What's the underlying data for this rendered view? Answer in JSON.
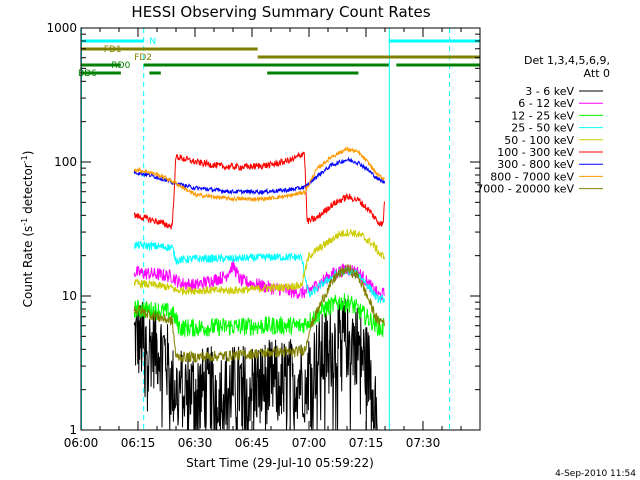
{
  "chart_data": {
    "type": "line",
    "title": "HESSI Observing Summary Count Rates",
    "xlabel": "Start Time (29-Jul-10 05:59:22)",
    "ylabel_parts": [
      "Count Rate (s",
      "-1",
      " detector",
      "-1",
      ")"
    ],
    "y_scale": "log",
    "ylim": [
      1,
      1000
    ],
    "xlim": [
      0,
      105
    ],
    "x_unit": "minutes after 06:00",
    "grid": false,
    "y_ticks": [
      {
        "v": 1,
        "label": "1"
      },
      {
        "v": 10,
        "label": "10"
      },
      {
        "v": 100,
        "label": "100"
      },
      {
        "v": 1000,
        "label": "1000"
      }
    ],
    "x_ticks": [
      {
        "v": 0,
        "label": "06:00"
      },
      {
        "v": 15,
        "label": "06:15"
      },
      {
        "v": 30,
        "label": "06:30"
      },
      {
        "v": 45,
        "label": "06:45"
      },
      {
        "v": 60,
        "label": "07:00"
      },
      {
        "v": 75,
        "label": "07:15"
      },
      {
        "v": 90,
        "label": "07:30"
      }
    ],
    "legend_title_lines": [
      "Det 1,3,4,5,6,9,",
      "Att 0"
    ],
    "legend_position": "right",
    "series": [
      {
        "name": "3 - 6 keV",
        "color": "#000000",
        "noise": 0.32,
        "points": [
          [
            14,
            5
          ],
          [
            16,
            4.5
          ],
          [
            19,
            4.2
          ],
          [
            22,
            3.9
          ],
          [
            24,
            2.1
          ],
          [
            30,
            2.0
          ],
          [
            40,
            2.1
          ],
          [
            50,
            2.3
          ],
          [
            56,
            2.4
          ],
          [
            59,
            2.5
          ],
          [
            61,
            3.1
          ],
          [
            65,
            4.0
          ],
          [
            69,
            4.8
          ],
          [
            72,
            4.9
          ],
          [
            75,
            3.2
          ],
          [
            76.5,
            2.5
          ],
          [
            78,
            1.5
          ]
        ]
      },
      {
        "name": "6 - 12 keV",
        "color": "#ff00ff",
        "noise": 0.05,
        "points": [
          [
            14,
            15
          ],
          [
            20,
            14.5
          ],
          [
            24,
            14
          ],
          [
            26,
            12.5
          ],
          [
            30,
            12
          ],
          [
            38,
            14
          ],
          [
            40,
            17
          ],
          [
            42,
            13
          ],
          [
            50,
            11.5
          ],
          [
            58,
            10.5
          ],
          [
            59.5,
            10.8
          ],
          [
            62,
            12
          ],
          [
            66,
            14.5
          ],
          [
            70,
            16
          ],
          [
            73,
            15
          ],
          [
            76,
            12
          ],
          [
            78.5,
            10
          ],
          [
            80,
            10.5
          ]
        ]
      },
      {
        "name": "12 - 25 keV",
        "color": "#00ff00",
        "noise": 0.07,
        "points": [
          [
            14,
            8
          ],
          [
            20,
            7.8
          ],
          [
            24,
            7.5
          ],
          [
            26,
            5.8
          ],
          [
            30,
            5.8
          ],
          [
            40,
            5.9
          ],
          [
            50,
            6.0
          ],
          [
            58,
            6.0
          ],
          [
            60,
            6.5
          ],
          [
            64,
            8
          ],
          [
            68,
            9
          ],
          [
            71,
            8.8
          ],
          [
            75,
            7
          ],
          [
            78,
            6
          ],
          [
            79.5,
            5.5
          ],
          [
            80,
            7.5
          ]
        ]
      },
      {
        "name": "25 - 50 keV",
        "color": "#00ffff",
        "noise": 0.03,
        "points": [
          [
            14,
            24
          ],
          [
            20,
            23.5
          ],
          [
            24,
            23
          ],
          [
            25,
            18.5
          ],
          [
            30,
            19
          ],
          [
            40,
            19
          ],
          [
            50,
            19.5
          ],
          [
            58,
            19.5
          ],
          [
            60,
            10
          ],
          [
            63,
            12
          ],
          [
            67,
            14.5
          ],
          [
            70,
            15.5
          ],
          [
            73,
            14.5
          ],
          [
            76,
            11.5
          ],
          [
            78,
            9.5
          ],
          [
            80,
            9.5
          ]
        ]
      },
      {
        "name": "50 - 100 keV",
        "color": "#cccc00",
        "noise": 0.03,
        "points": [
          [
            14,
            12.5
          ],
          [
            20,
            12
          ],
          [
            24,
            11.5
          ],
          [
            25,
            11
          ],
          [
            30,
            11
          ],
          [
            40,
            11
          ],
          [
            50,
            11.5
          ],
          [
            58,
            12
          ],
          [
            60,
            20
          ],
          [
            64,
            24
          ],
          [
            68,
            29
          ],
          [
            71,
            30
          ],
          [
            74,
            28
          ],
          [
            77,
            24
          ],
          [
            79,
            20
          ],
          [
            80,
            20
          ]
        ]
      },
      {
        "name": "100 - 300 keV",
        "color": "#ff0000",
        "noise": 0.025,
        "points": [
          [
            14,
            40
          ],
          [
            20,
            36
          ],
          [
            24,
            33
          ],
          [
            25,
            110
          ],
          [
            30,
            100
          ],
          [
            38,
            92
          ],
          [
            44,
            92
          ],
          [
            50,
            95
          ],
          [
            56,
            105
          ],
          [
            58.8,
            118
          ],
          [
            59.5,
            36
          ],
          [
            62,
            38
          ],
          [
            66,
            48
          ],
          [
            70,
            55
          ],
          [
            73,
            52
          ],
          [
            76,
            43
          ],
          [
            78,
            36
          ],
          [
            79.5,
            34
          ],
          [
            80,
            60
          ]
        ]
      },
      {
        "name": "300 - 800 keV",
        "color": "#0000ff",
        "noise": 0.015,
        "points": [
          [
            14,
            84
          ],
          [
            18,
            80
          ],
          [
            22,
            74
          ],
          [
            24,
            70
          ],
          [
            30,
            64
          ],
          [
            40,
            60
          ],
          [
            48,
            60
          ],
          [
            55,
            62
          ],
          [
            59,
            65
          ],
          [
            62,
            78
          ],
          [
            66,
            95
          ],
          [
            70,
            104
          ],
          [
            73,
            99
          ],
          [
            76,
            85
          ],
          [
            78,
            75
          ],
          [
            80,
            70
          ]
        ]
      },
      {
        "name": "800 - 7000 keV",
        "color": "#ff9900",
        "noise": 0.015,
        "points": [
          [
            14,
            88
          ],
          [
            18,
            84
          ],
          [
            22,
            77
          ],
          [
            24,
            72
          ],
          [
            30,
            57
          ],
          [
            40,
            53
          ],
          [
            48,
            53
          ],
          [
            55,
            56
          ],
          [
            59,
            60
          ],
          [
            62,
            88
          ],
          [
            66,
            110
          ],
          [
            70,
            125
          ],
          [
            73,
            118
          ],
          [
            76,
            96
          ],
          [
            78,
            80
          ],
          [
            80,
            75
          ]
        ]
      },
      {
        "name": "7000 - 20000 keV",
        "color": "#808000",
        "noise": 0.04,
        "points": [
          [
            14,
            8
          ],
          [
            20,
            7
          ],
          [
            24,
            6.5
          ],
          [
            25,
            3.5
          ],
          [
            30,
            3.5
          ],
          [
            40,
            3.6
          ],
          [
            50,
            3.8
          ],
          [
            56,
            3.8
          ],
          [
            59,
            4.0
          ],
          [
            60,
            5.5
          ],
          [
            64,
            10
          ],
          [
            67,
            14
          ],
          [
            70,
            16
          ],
          [
            73,
            14
          ],
          [
            76,
            9
          ],
          [
            78,
            6.5
          ],
          [
            80,
            6.5
          ]
        ]
      }
    ],
    "mode_bars": [
      {
        "name": "N",
        "color": "#00ffff",
        "segments": [
          [
            0,
            16.5
          ],
          [
            81,
            105
          ]
        ],
        "level": 1
      },
      {
        "name": "FD1",
        "color": "#808000",
        "segments": [
          [
            0,
            46.5
          ]
        ],
        "level": 2
      },
      {
        "name": "FD2",
        "color": "#808000",
        "segments": [
          [
            46.5,
            105
          ]
        ],
        "level": 3
      },
      {
        "name": "RD0",
        "color": "#008000",
        "segments": [
          [
            0,
            10.5
          ],
          [
            16.5,
            81
          ],
          [
            83,
            105
          ]
        ],
        "level": 4
      },
      {
        "name": "BD6",
        "color": "#008000",
        "segments": [
          [
            0,
            10.5
          ],
          [
            18,
            21
          ],
          [
            49,
            73
          ]
        ],
        "level": 5
      }
    ],
    "night_lines": {
      "color": "#00ffff",
      "solid": [
        0,
        81
      ],
      "dashed": [
        16.5,
        97
      ]
    },
    "steps": [
      [
        24,
        25
      ],
      [
        58.8,
        60
      ],
      [
        79.5,
        80.2
      ]
    ]
  },
  "footer_date": "4-Sep-2010 11:54"
}
